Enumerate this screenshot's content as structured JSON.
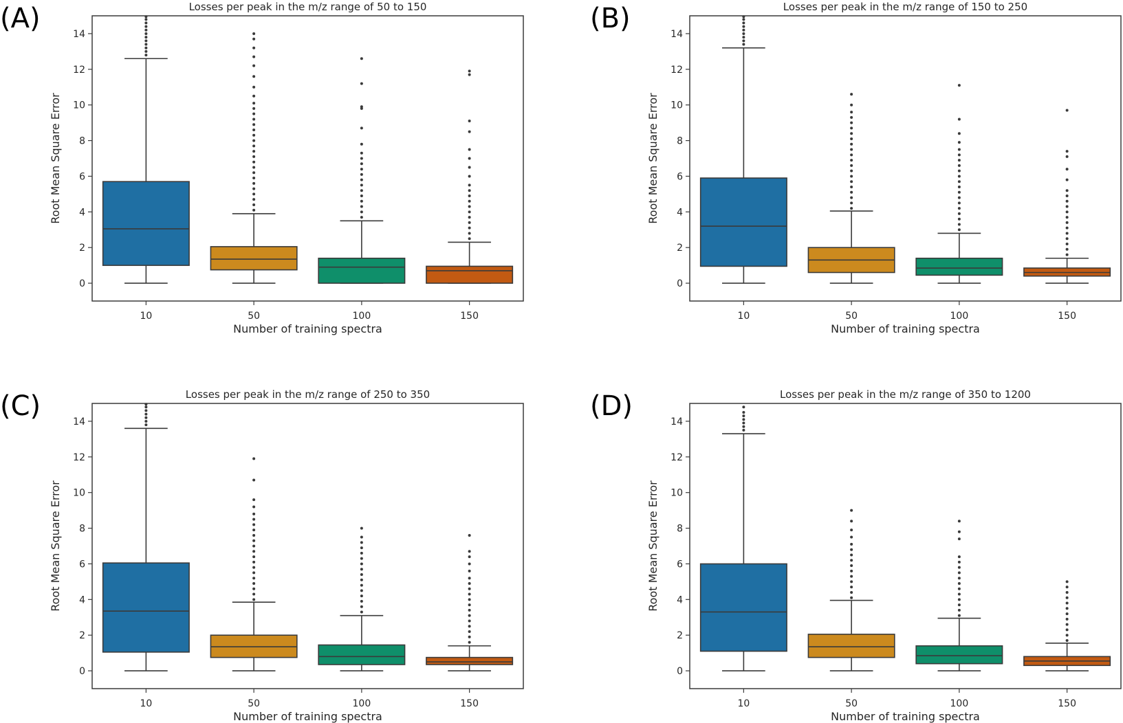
{
  "figure": {
    "box_edge_color": "#3a3a3a",
    "outlier_color": "#3a3a3a"
  },
  "chart_data": [
    {
      "type": "box",
      "panel_label": "(A)",
      "title": "Losses per peak in the m/z range of 50 to 150",
      "xlabel": "Number of training spectra",
      "ylabel": "Root Mean Square Error",
      "ylim": [
        -1,
        15
      ],
      "yticks": [
        0,
        2,
        4,
        6,
        8,
        10,
        12,
        14
      ],
      "categories": [
        "10",
        "50",
        "100",
        "150"
      ],
      "colors": [
        "#1f6fa3",
        "#cc8a1e",
        "#0f8f6a",
        "#c25a12"
      ],
      "boxes": [
        {
          "min": 0,
          "q1": 1.0,
          "median": 3.05,
          "q3": 5.7,
          "max": 12.6,
          "outliers": [
            12.8,
            13.0,
            13.2,
            13.4,
            13.6,
            13.8,
            14.0,
            14.2,
            14.4,
            14.6,
            14.8,
            14.95
          ]
        },
        {
          "min": 0,
          "q1": 0.75,
          "median": 1.35,
          "q3": 2.05,
          "max": 3.9,
          "outliers": [
            4.1,
            4.4,
            4.7,
            5.0,
            5.3,
            5.6,
            5.9,
            6.2,
            6.5,
            6.8,
            7.1,
            7.4,
            7.7,
            8.0,
            8.3,
            8.6,
            8.9,
            9.2,
            9.5,
            9.8,
            10.1,
            10.5,
            11.0,
            11.6,
            12.2,
            12.7,
            13.2,
            13.7,
            14.0
          ]
        },
        {
          "min": 0,
          "q1": 0.0,
          "median": 0.9,
          "q3": 1.4,
          "max": 3.5,
          "outliers": [
            3.7,
            4.0,
            4.3,
            4.6,
            4.9,
            5.2,
            5.5,
            5.8,
            6.1,
            6.4,
            6.7,
            7.0,
            7.3,
            7.8,
            8.7,
            9.8,
            9.9,
            11.2,
            12.6
          ]
        },
        {
          "min": 0,
          "q1": 0.0,
          "median": 0.7,
          "q3": 0.95,
          "max": 2.3,
          "outliers": [
            2.5,
            2.8,
            3.1,
            3.4,
            3.7,
            4.0,
            4.3,
            4.6,
            4.9,
            5.2,
            5.5,
            6.0,
            6.5,
            7.0,
            7.5,
            8.5,
            9.1,
            11.7,
            11.9
          ]
        }
      ]
    },
    {
      "type": "box",
      "panel_label": "(B)",
      "title": "Losses per peak in the m/z range of 150 to 250",
      "xlabel": "Number of training spectra",
      "ylabel": "Root Mean Square Error",
      "ylim": [
        -1,
        15
      ],
      "yticks": [
        0,
        2,
        4,
        6,
        8,
        10,
        12,
        14
      ],
      "categories": [
        "10",
        "50",
        "100",
        "150"
      ],
      "colors": [
        "#1f6fa3",
        "#cc8a1e",
        "#0f8f6a",
        "#c25a12"
      ],
      "boxes": [
        {
          "min": 0,
          "q1": 0.95,
          "median": 3.2,
          "q3": 5.9,
          "max": 13.2,
          "outliers": [
            13.4,
            13.6,
            13.8,
            14.0,
            14.2,
            14.4,
            14.6,
            14.8,
            14.95
          ]
        },
        {
          "min": 0,
          "q1": 0.6,
          "median": 1.3,
          "q3": 2.0,
          "max": 4.05,
          "outliers": [
            4.2,
            4.5,
            4.8,
            5.1,
            5.4,
            5.7,
            6.0,
            6.3,
            6.6,
            6.9,
            7.2,
            7.5,
            7.8,
            8.1,
            8.4,
            8.7,
            9.0,
            9.3,
            9.6,
            10.0,
            10.6
          ]
        },
        {
          "min": 0,
          "q1": 0.45,
          "median": 0.85,
          "q3": 1.4,
          "max": 2.8,
          "outliers": [
            3.0,
            3.3,
            3.6,
            3.9,
            4.2,
            4.5,
            4.8,
            5.1,
            5.4,
            5.7,
            6.0,
            6.3,
            6.6,
            6.9,
            7.2,
            7.5,
            7.9,
            8.4,
            9.2,
            11.1
          ]
        },
        {
          "min": 0,
          "q1": 0.4,
          "median": 0.6,
          "q3": 0.85,
          "max": 1.4,
          "outliers": [
            1.6,
            1.9,
            2.2,
            2.5,
            2.8,
            3.1,
            3.4,
            3.7,
            4.0,
            4.3,
            4.6,
            4.9,
            5.2,
            5.8,
            6.4,
            7.1,
            7.4,
            9.7
          ]
        }
      ]
    },
    {
      "type": "box",
      "panel_label": "(C)",
      "title": "Losses per peak in the m/z range of 250 to 350",
      "xlabel": "Number of training spectra",
      "ylabel": "Root Mean Square Error",
      "ylim": [
        -1,
        15
      ],
      "yticks": [
        0,
        2,
        4,
        6,
        8,
        10,
        12,
        14
      ],
      "categories": [
        "10",
        "50",
        "100",
        "150"
      ],
      "colors": [
        "#1f6fa3",
        "#cc8a1e",
        "#0f8f6a",
        "#c25a12"
      ],
      "boxes": [
        {
          "min": 0,
          "q1": 1.05,
          "median": 3.35,
          "q3": 6.05,
          "max": 13.6,
          "outliers": [
            13.8,
            14.0,
            14.2,
            14.4,
            14.6,
            14.8,
            14.95
          ]
        },
        {
          "min": 0,
          "q1": 0.75,
          "median": 1.35,
          "q3": 2.0,
          "max": 3.85,
          "outliers": [
            4.0,
            4.3,
            4.6,
            4.9,
            5.2,
            5.5,
            5.8,
            6.1,
            6.4,
            6.7,
            7.0,
            7.3,
            7.6,
            7.9,
            8.2,
            8.5,
            8.8,
            9.2,
            9.6,
            10.7,
            11.9
          ]
        },
        {
          "min": 0,
          "q1": 0.35,
          "median": 0.8,
          "q3": 1.45,
          "max": 3.1,
          "outliers": [
            3.3,
            3.6,
            3.9,
            4.2,
            4.5,
            4.8,
            5.1,
            5.4,
            5.7,
            6.0,
            6.3,
            6.6,
            6.9,
            7.2,
            7.5,
            8.0
          ]
        },
        {
          "min": 0,
          "q1": 0.35,
          "median": 0.5,
          "q3": 0.75,
          "max": 1.4,
          "outliers": [
            1.6,
            1.9,
            2.2,
            2.5,
            2.8,
            3.1,
            3.4,
            3.7,
            4.0,
            4.3,
            4.6,
            4.9,
            5.2,
            5.6,
            6.0,
            6.4,
            6.7,
            7.6
          ]
        }
      ]
    },
    {
      "type": "box",
      "panel_label": "(D)",
      "title": "Losses per peak in the m/z range of 350 to 1200",
      "xlabel": "Number of training spectra",
      "ylabel": "Root Mean Square Error",
      "ylim": [
        -1,
        15
      ],
      "yticks": [
        0,
        2,
        4,
        6,
        8,
        10,
        12,
        14
      ],
      "categories": [
        "10",
        "50",
        "100",
        "150"
      ],
      "colors": [
        "#1f6fa3",
        "#cc8a1e",
        "#0f8f6a",
        "#c25a12"
      ],
      "boxes": [
        {
          "min": 0,
          "q1": 1.1,
          "median": 3.3,
          "q3": 6.0,
          "max": 13.3,
          "outliers": [
            13.5,
            13.7,
            13.9,
            14.1,
            14.3,
            14.5,
            14.8
          ]
        },
        {
          "min": 0,
          "q1": 0.75,
          "median": 1.35,
          "q3": 2.05,
          "max": 3.95,
          "outliers": [
            4.1,
            4.4,
            4.7,
            5.0,
            5.3,
            5.6,
            5.9,
            6.2,
            6.5,
            6.8,
            7.1,
            7.5,
            7.9,
            8.4,
            9.0
          ]
        },
        {
          "min": 0,
          "q1": 0.4,
          "median": 0.85,
          "q3": 1.4,
          "max": 2.95,
          "outliers": [
            3.1,
            3.4,
            3.7,
            4.0,
            4.3,
            4.6,
            4.9,
            5.2,
            5.5,
            5.8,
            6.1,
            6.4,
            7.4,
            7.8,
            8.4
          ]
        },
        {
          "min": 0,
          "q1": 0.3,
          "median": 0.55,
          "q3": 0.8,
          "max": 1.55,
          "outliers": [
            1.7,
            2.0,
            2.3,
            2.6,
            2.9,
            3.2,
            3.5,
            3.8,
            4.1,
            4.4,
            4.7,
            5.0
          ]
        }
      ]
    }
  ]
}
